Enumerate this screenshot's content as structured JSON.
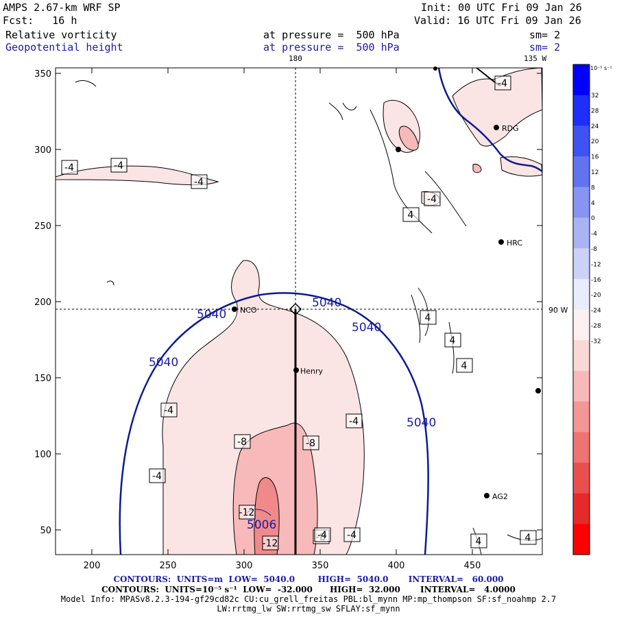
{
  "header": {
    "model": "AMPS 2.67-km WRF SP",
    "init": "Init: 00 UTC Fri 09 Jan 26",
    "fcst": "Fcst:   16 h",
    "valid": "Valid: 16 UTC Fri 09 Jan 26",
    "field1": "Relative vorticity",
    "field1_level": "at pressure =  500 hPa",
    "field1_sm": "sm= 2",
    "field2": "Geopotential height",
    "field2_level": "at pressure =  500 hPa",
    "field2_sm": "sm= 2"
  },
  "map": {
    "top_lon_label": "180",
    "top_right_lon_label": "135 W",
    "right_lon_label": "90 W",
    "x_ticks": [
      "200",
      "250",
      "300",
      "350",
      "400",
      "450"
    ],
    "y_ticks": [
      "350",
      "300",
      "250",
      "200",
      "150",
      "100",
      "50"
    ],
    "stations": [
      "RDG",
      "HRC",
      "NCO",
      "Henry",
      "AG2"
    ],
    "height_labels": [
      "5040",
      "5040",
      "5040",
      "5040",
      "5040",
      "5006"
    ],
    "vort_labels": [
      "-4",
      "-4",
      "-4",
      "-4",
      "4",
      "-4",
      "4",
      "4",
      "4",
      "-4",
      "-4",
      "-8",
      "-8",
      "-4",
      "-12",
      "-12",
      "-8",
      "-4",
      "4",
      "4",
      "-4"
    ]
  },
  "colorbar": {
    "unit": "10⁻⁵ s⁻¹",
    "labels": [
      "32",
      "28",
      "24",
      "20",
      "16",
      "12",
      "8",
      "4",
      "0",
      "-4",
      "-8",
      "-12",
      "-16",
      "-20",
      "-24",
      "-28",
      "-32"
    ]
  },
  "footer": {
    "line1": "CONTOURS:  UNITS=m  LOW=  5040.0        HIGH=  5040.0       INTERVAL=   60.000",
    "line2": "CONTOURS:  UNITS=10⁻⁵ s⁻¹  LOW=  -32.000      HIGH=  32.000       INTERVAL=   4.0000",
    "line3": "Model Info: MPASv8.2.3-194-gf29cd82c CU:cu_grell_freitas PBL:bl_mynn MP:mp_thompson SF:sf_noahmp 2.7",
    "line4": "LW:rrtmg_lw SW:rrtmg_sw SFLAY:sf_mynn"
  }
}
